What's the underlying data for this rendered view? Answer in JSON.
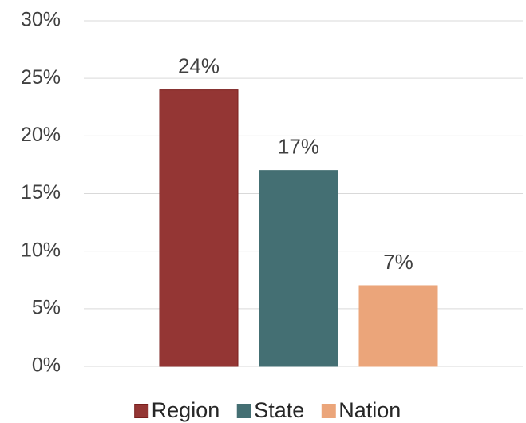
{
  "chart_data": {
    "type": "bar",
    "categories": [
      null
    ],
    "series": [
      {
        "name": "Region",
        "color": "#943634",
        "values": [
          24
        ],
        "value_labels": [
          "24%"
        ]
      },
      {
        "name": "State",
        "color": "#446f73",
        "values": [
          17
        ],
        "value_labels": [
          "17%"
        ]
      },
      {
        "name": "Nation",
        "color": "#eba57a",
        "values": [
          7
        ],
        "value_labels": [
          "7%"
        ]
      }
    ],
    "ylim": [
      0,
      30
    ],
    "yticks": [
      {
        "value": 0,
        "label": "0%"
      },
      {
        "value": 5,
        "label": "5%"
      },
      {
        "value": 10,
        "label": "10%"
      },
      {
        "value": 15,
        "label": "15%"
      },
      {
        "value": 20,
        "label": "20%"
      },
      {
        "value": 25,
        "label": "25%"
      },
      {
        "value": 30,
        "label": "30%"
      }
    ],
    "grid": true,
    "legend": "bottom"
  }
}
